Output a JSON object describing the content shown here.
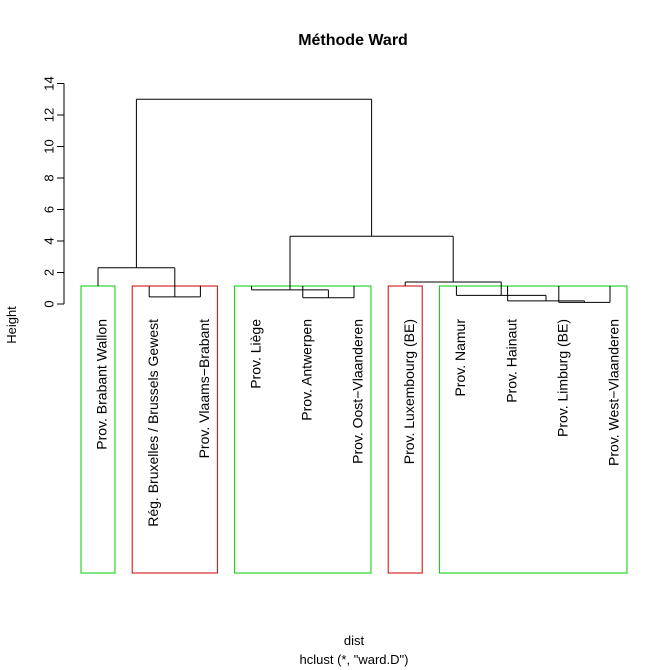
{
  "chart_data": {
    "type": "dendrogram",
    "title": "Méthode Ward",
    "ylabel": "Height",
    "xlabel": "dist",
    "subtitle": "hclust (*, \"ward.D\")",
    "ylim": [
      0,
      14
    ],
    "yticks": [
      "0",
      "2",
      "4",
      "6",
      "8",
      "10",
      "12",
      "14"
    ],
    "ytick_values": [
      0,
      2,
      4,
      6,
      8,
      10,
      12,
      14
    ],
    "leaves": [
      "Prov. Brabant Wallon",
      "Rég. Bruxelles / Brussels Gewest",
      "Prov. Vlaams−Brabant",
      "Prov. Liège",
      "Prov. Antwerpen",
      "Prov. Oost−Vlaanderen",
      "Prov. Luxembourg (BE)",
      "Prov. Namur",
      "Prov. Hainaut",
      "Prov. Limburg (BE)",
      "Prov. West−Vlaanderen"
    ],
    "merges": [
      {
        "a": "L:Prov. Limburg (BE)",
        "b": "L:Prov. West−Vlaanderen",
        "height": 0.1
      },
      {
        "a": "L:Prov. Hainaut",
        "b": "N:0",
        "height": 0.2
      },
      {
        "a": "L:Prov. Rég. Bruxelles / Brussels Gewest",
        "b": "L:Prov. Vlaams−Brabant",
        "height": 0.45
      },
      {
        "a": "L:Prov. Antwerpen",
        "b": "L:Prov. Oost−Vlaanderen",
        "height": 0.4
      },
      {
        "a": "L:Prov. Namur",
        "b": "N:1",
        "height": 0.55
      },
      {
        "a": "L:Prov. Liège",
        "b": "N:3",
        "height": 0.9
      },
      {
        "a": "L:Prov. Luxembourg (BE)",
        "b": "N:4",
        "height": 1.4
      },
      {
        "a": "L:Prov. Brabant Wallon",
        "b": "N:2",
        "height": 2.3
      },
      {
        "a": "N:5",
        "b": "N:6",
        "height": 4.3
      },
      {
        "a": "N:7",
        "b": "N:8",
        "height": 13.0
      }
    ],
    "clusters": [
      {
        "leaves": [
          "Prov. Brabant Wallon"
        ],
        "color": "#00cc00"
      },
      {
        "leaves": [
          "Rég. Bruxelles / Brussels Gewest",
          "Prov. Vlaams−Brabant"
        ],
        "color": "#cc0000"
      },
      {
        "leaves": [
          "Prov. Liège",
          "Prov. Antwerpen",
          "Prov. Oost−Vlaanderen"
        ],
        "color": "#00cc00"
      },
      {
        "leaves": [
          "Prov. Luxembourg (BE)"
        ],
        "color": "#cc0000"
      },
      {
        "leaves": [
          "Prov. Namur",
          "Prov. Hainaut",
          "Prov. Limburg (BE)",
          "Prov. West−Vlaanderen"
        ],
        "color": "#00cc00"
      }
    ]
  }
}
